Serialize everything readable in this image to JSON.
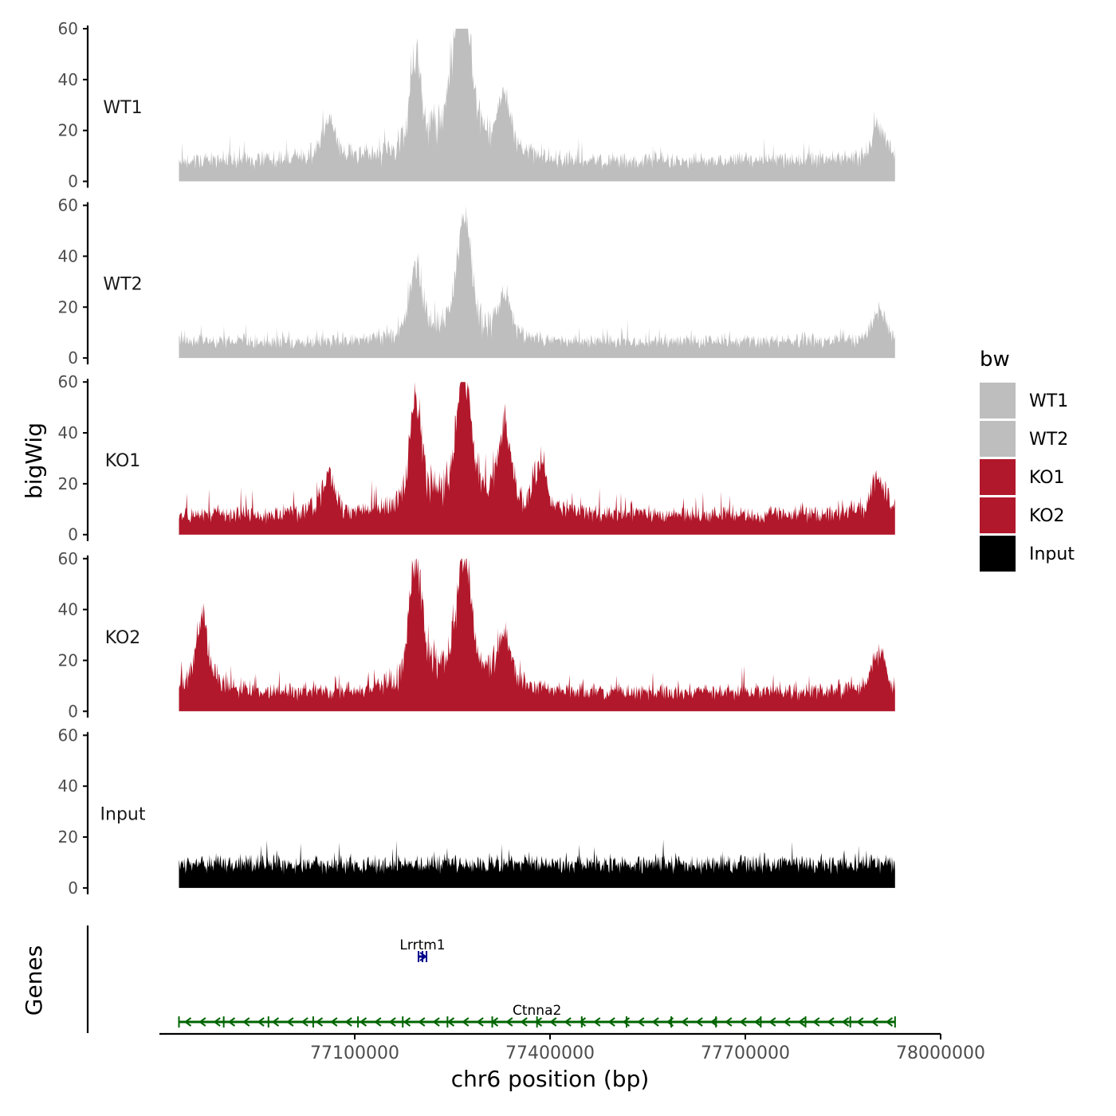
{
  "chart_data": {
    "type": "area",
    "title": "",
    "ylabel": "bigWig",
    "xlabel": "chr6 position (bp)",
    "xlim": [
      76800000,
      78000000
    ],
    "data_xrange": [
      76830000,
      77930000
    ],
    "ylim": [
      0,
      60
    ],
    "yticks": [
      0,
      20,
      40,
      60
    ],
    "xticks": [
      77100000,
      77400000,
      77700000,
      78000000
    ],
    "tracks": [
      {
        "name": "WT1",
        "label": "WT1",
        "color": "#bebebe",
        "baseline": 8,
        "noise": 7,
        "seed": 11,
        "peaks": [
          {
            "x": 77194000,
            "y": 45
          },
          {
            "x": 77262000,
            "y": 40
          },
          {
            "x": 77272000,
            "y": 42
          },
          {
            "x": 77330000,
            "y": 30
          },
          {
            "x": 77250000,
            "y": 26
          },
          {
            "x": 77060000,
            "y": 22
          },
          {
            "x": 77905000,
            "y": 21
          }
        ]
      },
      {
        "name": "WT2",
        "label": "WT2",
        "color": "#bebebe",
        "baseline": 6,
        "noise": 6,
        "seed": 23,
        "peaks": [
          {
            "x": 77194000,
            "y": 33
          },
          {
            "x": 77272000,
            "y": 34
          },
          {
            "x": 77262000,
            "y": 30
          },
          {
            "x": 77330000,
            "y": 22
          },
          {
            "x": 77905000,
            "y": 17
          }
        ]
      },
      {
        "name": "KO1",
        "label": "KO1",
        "color": "#b2182b",
        "baseline": 7,
        "noise": 8,
        "seed": 37,
        "peaks": [
          {
            "x": 77194000,
            "y": 49
          },
          {
            "x": 77272000,
            "y": 40
          },
          {
            "x": 77262000,
            "y": 36
          },
          {
            "x": 77330000,
            "y": 37
          },
          {
            "x": 77385000,
            "y": 25
          },
          {
            "x": 77060000,
            "y": 22
          },
          {
            "x": 77905000,
            "y": 21
          }
        ]
      },
      {
        "name": "KO2",
        "label": "KO2",
        "color": "#b2182b",
        "baseline": 7,
        "noise": 8,
        "seed": 53,
        "peaks": [
          {
            "x": 77194000,
            "y": 58
          },
          {
            "x": 77272000,
            "y": 42
          },
          {
            "x": 77262000,
            "y": 30
          },
          {
            "x": 77330000,
            "y": 27
          },
          {
            "x": 76865000,
            "y": 36
          },
          {
            "x": 77905000,
            "y": 23
          }
        ]
      },
      {
        "name": "Input",
        "label": "Input",
        "color": "#000000",
        "baseline": 9,
        "noise": 7,
        "seed": 71,
        "peaks": []
      }
    ],
    "genes_label": "Genes",
    "genes": [
      {
        "name": "Lrrtm1",
        "start": 77198000,
        "end": 77205000,
        "strand": "+",
        "color": "#00008b"
      },
      {
        "name": "Ctnna2",
        "start": 76830000,
        "end": 77930000,
        "strand": "-",
        "color": "#006400"
      }
    ],
    "legend": {
      "title": "bw",
      "position": "right",
      "entries": [
        {
          "label": "WT1",
          "color": "#bebebe"
        },
        {
          "label": "WT2",
          "color": "#bebebe"
        },
        {
          "label": "KO1",
          "color": "#b2182b"
        },
        {
          "label": "KO2",
          "color": "#b2182b"
        },
        {
          "label": "Input",
          "color": "#000000"
        }
      ]
    }
  }
}
